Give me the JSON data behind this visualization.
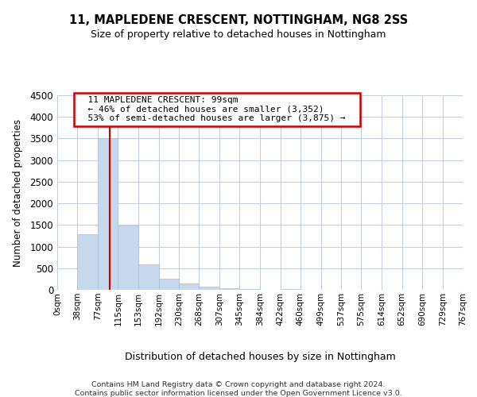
{
  "title": "11, MAPLEDENE CRESCENT, NOTTINGHAM, NG8 2SS",
  "subtitle": "Size of property relative to detached houses in Nottingham",
  "xlabel": "Distribution of detached houses by size in Nottingham",
  "ylabel": "Number of detached properties",
  "bar_color": "#c8d8ec",
  "bar_edge_color": "#a8c0d8",
  "vline_color": "#cc0000",
  "vline_x": 99,
  "bin_edges": [
    0,
    38,
    77,
    115,
    153,
    192,
    230,
    268,
    307,
    345,
    384,
    422,
    460,
    499,
    537,
    575,
    614,
    652,
    690,
    729,
    767
  ],
  "bin_labels": [
    "0sqm",
    "38sqm",
    "77sqm",
    "115sqm",
    "153sqm",
    "192sqm",
    "230sqm",
    "268sqm",
    "307sqm",
    "345sqm",
    "384sqm",
    "422sqm",
    "460sqm",
    "499sqm",
    "537sqm",
    "575sqm",
    "614sqm",
    "652sqm",
    "690sqm",
    "729sqm",
    "767sqm"
  ],
  "bar_heights": [
    0,
    1280,
    3500,
    1480,
    580,
    250,
    140,
    75,
    30,
    10,
    5,
    15,
    5,
    0,
    0,
    0,
    0,
    0,
    0,
    0
  ],
  "ylim": [
    0,
    4500
  ],
  "yticks": [
    0,
    500,
    1000,
    1500,
    2000,
    2500,
    3000,
    3500,
    4000,
    4500
  ],
  "annotation_title": "11 MAPLEDENE CRESCENT: 99sqm",
  "annotation_line1": "← 46% of detached houses are smaller (3,352)",
  "annotation_line2": "53% of semi-detached houses are larger (3,875) →",
  "annotation_box_color": "#ffffff",
  "annotation_border_color": "#cc0000",
  "footer_line1": "Contains HM Land Registry data © Crown copyright and database right 2024.",
  "footer_line2": "Contains public sector information licensed under the Open Government Licence v3.0.",
  "background_color": "#ffffff",
  "grid_color": "#c0d0e0"
}
